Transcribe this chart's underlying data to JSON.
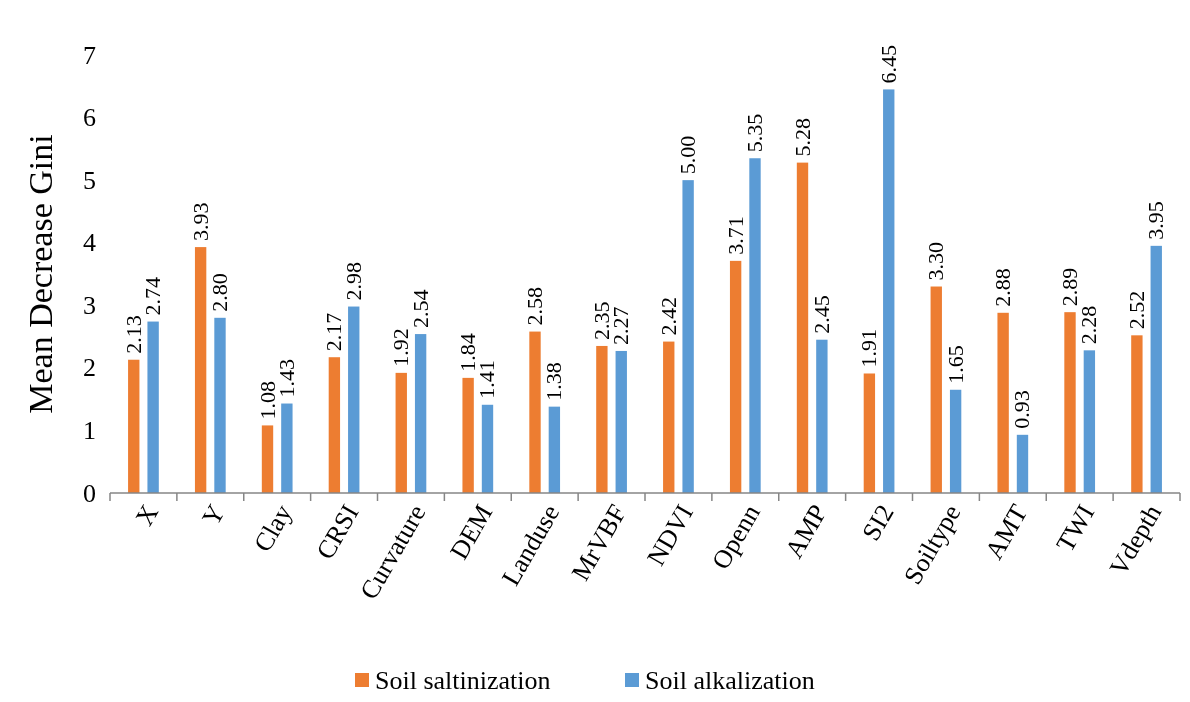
{
  "chart_data": {
    "type": "bar",
    "ylabel": "Mean Decrease Gini",
    "categories": [
      "X",
      "Y",
      "Clay",
      "CRSI",
      "Curvature",
      "DEM",
      "Landuse",
      "MrVBF",
      "NDVI",
      "Openn",
      "AMP",
      "SI2",
      "Soiltype",
      "AMT",
      "TWI",
      "Vdepth"
    ],
    "series": [
      {
        "name": "Soil saltinization",
        "color": "#ed7d31",
        "values": [
          2.13,
          3.93,
          1.08,
          2.17,
          1.92,
          1.84,
          2.58,
          2.35,
          2.42,
          3.71,
          5.28,
          1.91,
          3.3,
          2.88,
          2.89,
          2.52
        ],
        "value_labels": [
          "2.13",
          "3.93",
          "1.08",
          "2.17",
          "1.92",
          "1.84",
          "2.58",
          "2.35",
          "2.42",
          "3.71",
          "5.28",
          "1.91",
          "3.30",
          "2.88",
          "2.89",
          "2.52"
        ]
      },
      {
        "name": "Soil alkalization",
        "color": "#5b9bd5",
        "values": [
          2.74,
          2.8,
          1.43,
          2.98,
          2.54,
          1.41,
          1.38,
          2.27,
          5.0,
          5.35,
          2.45,
          6.45,
          1.65,
          0.93,
          2.28,
          3.95
        ],
        "value_labels": [
          "2.74",
          "2.80",
          "1.43",
          "2.98",
          "2.54",
          "1.41",
          "1.38",
          "2.27",
          "5.00",
          "5.35",
          "2.45",
          "6.45",
          "1.65",
          "0.93",
          "2.28",
          "3.95"
        ]
      }
    ],
    "ylim": [
      0,
      7
    ],
    "yticks": [
      0,
      1,
      2,
      3,
      4,
      5,
      6,
      7
    ],
    "grid": false,
    "legend": "bottom"
  }
}
